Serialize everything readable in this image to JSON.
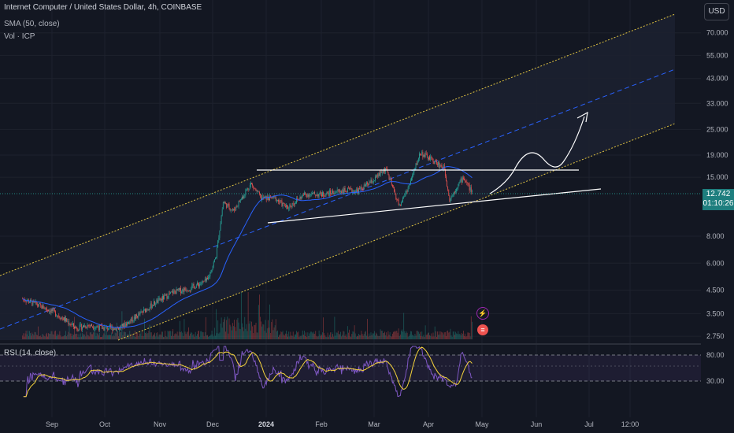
{
  "legend": {
    "symbol": "Internet Computer / United States Dollar, 4h, COINBASE",
    "sma": "SMA (50, close)",
    "vol": "Vol · ICP"
  },
  "currency_button": "USD",
  "last_price": {
    "value": "12.742",
    "countdown": "01:10:26"
  },
  "rsi_label": "RSI (14, close)",
  "colors": {
    "background": "#131722",
    "up": "#26a69a",
    "down": "#ef5350",
    "sma": "#2962ff",
    "channel": "#e0c341",
    "midline": "#2962ff",
    "rsi": "#7e57c2",
    "rsi_ma": "#f5d33b",
    "drawing": "#ffffff",
    "price_tag": "#1e7e7e"
  },
  "chart_data": {
    "type": "candlestick",
    "title": "Internet Computer / United States Dollar, 4h, COINBASE",
    "y_axis": {
      "scale": "log",
      "ticks": [
        "70.000",
        "55.000",
        "43.000",
        "33.000",
        "25.000",
        "19.000",
        "15.000",
        "8.000",
        "6.000",
        "4.500",
        "3.500",
        "2.750"
      ],
      "range": [
        2.6,
        90
      ]
    },
    "x_axis": {
      "ticks": [
        {
          "label": "Sep",
          "bold": false
        },
        {
          "label": "Oct",
          "bold": false
        },
        {
          "label": "Nov",
          "bold": false
        },
        {
          "label": "Dec",
          "bold": false
        },
        {
          "label": "2024",
          "bold": true
        },
        {
          "label": "Feb",
          "bold": false
        },
        {
          "label": "Mar",
          "bold": false
        },
        {
          "label": "Apr",
          "bold": false
        },
        {
          "label": "May",
          "bold": false
        },
        {
          "label": "Jun",
          "bold": false
        },
        {
          "label": "Jul",
          "bold": false
        },
        {
          "label": "12:00",
          "bold": false
        }
      ]
    },
    "price_path": [
      [
        "Aug 15",
        4.1
      ],
      [
        "Aug 25",
        3.8
      ],
      [
        "Sep 1",
        3.6
      ],
      [
        "Sep 8",
        3.3
      ],
      [
        "Sep 15",
        3.0
      ],
      [
        "Sep 22",
        3.1
      ],
      [
        "Oct 1",
        3.0
      ],
      [
        "Oct 10",
        3.0
      ],
      [
        "Oct 20",
        3.4
      ],
      [
        "Oct 30",
        3.9
      ],
      [
        "Nov 10",
        4.4
      ],
      [
        "Nov 20",
        4.6
      ],
      [
        "Nov 30",
        5.0
      ],
      [
        "Dec 5",
        6.5
      ],
      [
        "Dec 9",
        11.5
      ],
      [
        "Dec 15",
        10.5
      ],
      [
        "Dec 25",
        14.0
      ],
      [
        "Dec 31",
        12.0
      ],
      [
        "Jan 8",
        12.0
      ],
      [
        "Jan 15",
        10.8
      ],
      [
        "Jan 25",
        12.5
      ],
      [
        "Feb 5",
        12.5
      ],
      [
        "Feb 15",
        13.0
      ],
      [
        "Feb 25",
        13.0
      ],
      [
        "Mar 5",
        14.5
      ],
      [
        "Mar 12",
        16.5
      ],
      [
        "Mar 20",
        11.0
      ],
      [
        "Mar 26",
        14.0
      ],
      [
        "Apr 1",
        19.5
      ],
      [
        "Apr 8",
        18.0
      ],
      [
        "Apr 15",
        16.5
      ],
      [
        "Apr 18",
        11.8
      ],
      [
        "Apr 22",
        13.5
      ],
      [
        "Apr 26",
        15.0
      ],
      [
        "May 1",
        12.742
      ]
    ],
    "indicators": {
      "sma": "SMA (50, close)",
      "volume": "Vol · ICP",
      "rsi": {
        "label": "RSI (14, close)",
        "levels": [
          "80.00",
          "30.00"
        ]
      }
    },
    "drawings": [
      "parallel ascending channel",
      "horizontal resistance line",
      "rising support line",
      "projected curved arrow"
    ]
  }
}
